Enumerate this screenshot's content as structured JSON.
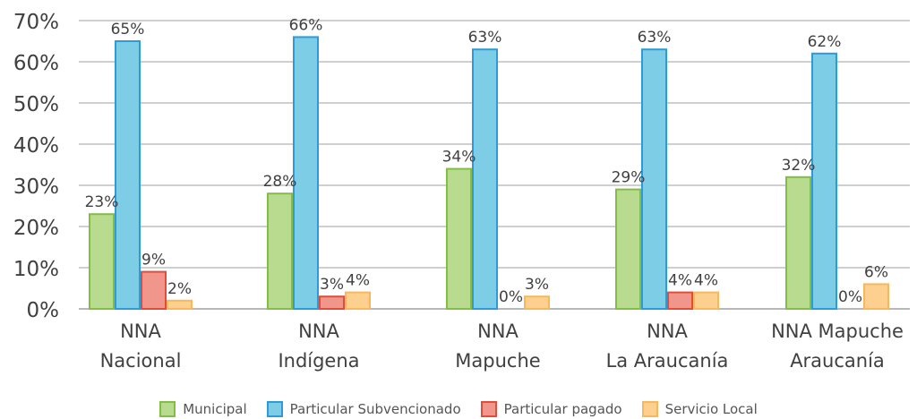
{
  "chart_data": {
    "type": "bar",
    "title": "",
    "xlabel": "",
    "ylabel": "",
    "ylim": [
      0,
      70
    ],
    "y_ticks": [
      "0%",
      "10%",
      "20%",
      "30%",
      "40%",
      "50%",
      "60%",
      "70%"
    ],
    "grid": true,
    "legend_position": "bottom",
    "categories": [
      [
        "NNA",
        "Nacional"
      ],
      [
        "NNA",
        "Indígena"
      ],
      [
        "NNA",
        "Mapuche"
      ],
      [
        "NNA",
        "La Araucanía"
      ],
      [
        "NNA Mapuche",
        "Araucanía"
      ]
    ],
    "series": [
      {
        "name": "Municipal",
        "fill": "#b9db8f",
        "stroke": "#82bd44",
        "values": [
          23,
          28,
          34,
          29,
          32
        ],
        "labels": [
          "23%",
          "28%",
          "34%",
          "29%",
          "32%"
        ]
      },
      {
        "name": "Particular Subvencionado",
        "fill": "#7ecde6",
        "stroke": "#2c9bd6",
        "values": [
          65,
          66,
          63,
          63,
          62
        ],
        "labels": [
          "65%",
          "66%",
          "63%",
          "63%",
          "62%"
        ]
      },
      {
        "name": "Particular pagado",
        "fill": "#f0968a",
        "stroke": "#e24c3a",
        "values": [
          9,
          3,
          0,
          4,
          0
        ],
        "labels": [
          "9%",
          "3%",
          "0%",
          "4%",
          "0%"
        ]
      },
      {
        "name": "Servicio Local",
        "fill": "#fdd08f",
        "stroke": "#f7b75b",
        "values": [
          2,
          4,
          3,
          4,
          6
        ],
        "labels": [
          "2%",
          "4%",
          "3%",
          "4%",
          "6%"
        ]
      }
    ]
  }
}
